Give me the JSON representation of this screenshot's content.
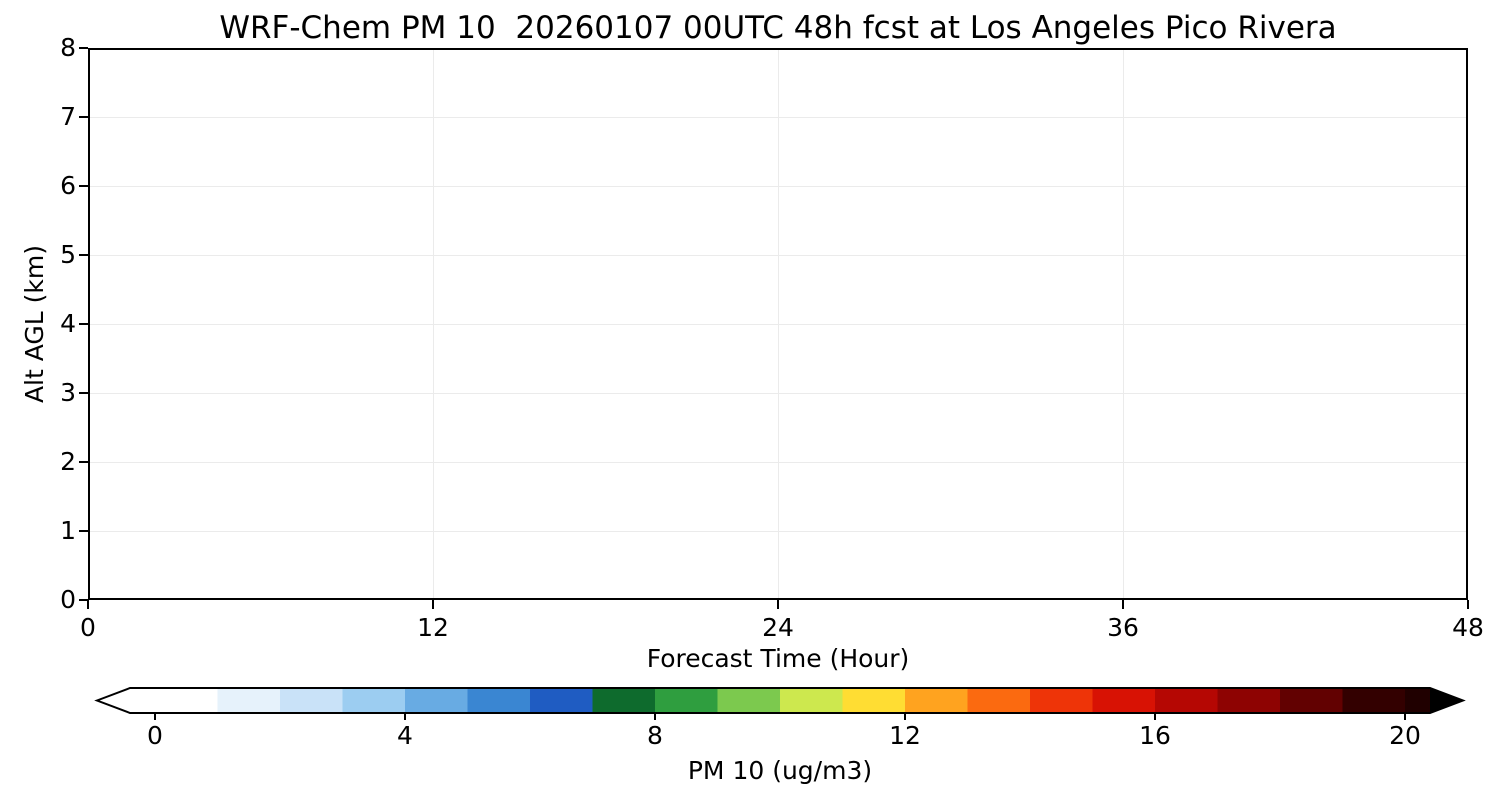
{
  "chart_data": {
    "type": "heatmap",
    "title": "WRF-Chem PM 10  20260107 00UTC 48h fcst at Los Angeles Pico Rivera",
    "xlabel": "Forecast Time (Hour)",
    "ylabel": "Alt AGL (km)",
    "xlim": [
      0,
      48
    ],
    "ylim": [
      0,
      8
    ],
    "x_ticks": [
      0,
      12,
      24,
      36,
      48
    ],
    "y_ticks": [
      0,
      1,
      2,
      3,
      4,
      5,
      6,
      7,
      8
    ],
    "grid": true,
    "values": [],
    "colorbar": {
      "label": "PM 10  (ug/m3)",
      "ticks": [
        0,
        4,
        8,
        12,
        16,
        20
      ],
      "vmin": 0,
      "vmax": 20,
      "extend": "both",
      "under_color": "#ffffff",
      "over_color": "#000000",
      "over_strip_color": "#200000",
      "segment_colors": [
        "#ffffff",
        "#e6f2fb",
        "#c9e2f8",
        "#9ccdf1",
        "#68abe3",
        "#3a86d2",
        "#1f5cc2",
        "#0e6b2d",
        "#2f9e3f",
        "#7cc94e",
        "#cde84e",
        "#ffdd33",
        "#ffa31f",
        "#fb6a10",
        "#ee3408",
        "#d81204",
        "#b50703",
        "#8e0302",
        "#620101",
        "#330000"
      ]
    }
  }
}
